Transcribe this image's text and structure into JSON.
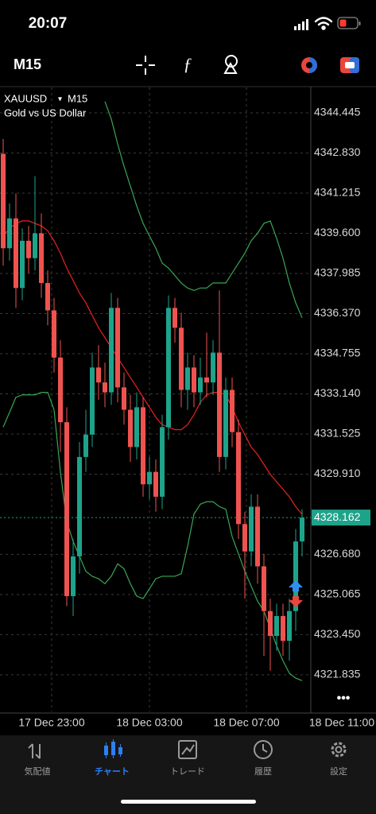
{
  "status": {
    "time": "20:07"
  },
  "toolbar": {
    "timeframe": "M15"
  },
  "chart_data": {
    "type": "candlestick",
    "symbol": "XAUUSD",
    "timeframe": "M15",
    "description": "Gold vs US Dollar",
    "up_color": "#1ea38b",
    "down_color": "#ef5350",
    "grid": true,
    "ylim": [
      4320.36,
      4345.47
    ],
    "yticks": [
      4344.445,
      {
        "value": 4342.83,
        "label": "4342.830"
      },
      4341.215,
      {
        "value": 4339.6,
        "label": "4339.600"
      },
      4337.985,
      {
        "value": 4336.37,
        "label": "4336.370"
      },
      4334.755,
      {
        "value": 4333.14,
        "label": "4333.140"
      },
      4331.525,
      {
        "value": 4329.91,
        "label": "4329.910"
      },
      {
        "value": 4326.68,
        "label": "4326.680"
      },
      4325.065,
      {
        "value": 4323.45,
        "label": "4323.450"
      },
      4321.835
    ],
    "time_labels": [
      "17 Dec 23:00",
      "18 Dec 03:00",
      "18 Dec 07:00",
      "18 Dec 11:00"
    ],
    "open": [
      4342.8,
      4339.0,
      4340.2,
      4337.4,
      4339.3,
      4338.6,
      4339.6,
      4337.6,
      4336.5,
      4334.6,
      4332.0,
      4325.0,
      4326.6,
      4330.6,
      4331.5,
      4334.2,
      4333.6,
      4333.2,
      4336.6,
      4333.4,
      4332.5,
      4331.0,
      4332.6,
      4329.5,
      4330.0,
      4329.0,
      4331.8,
      4336.6,
      4335.8,
      4333.3,
      4334.2,
      4333.2,
      4333.8,
      4333.6,
      4334.8,
      4330.6,
      4333.3,
      4331.6,
      4327.9,
      4326.8,
      4328.6,
      4326.2,
      4324.4,
      4323.4,
      4324.2,
      4323.2,
      4324.4,
      4327.2
    ],
    "high": [
      4343.4,
      4340.8,
      4341.2,
      4339.8,
      4339.9,
      4341.9,
      4340.4,
      4338.1,
      4337.0,
      4335.3,
      4332.6,
      4327.3,
      4331.2,
      4332.5,
      4334.8,
      4335.1,
      4334.4,
      4337.2,
      4337.0,
      4334.0,
      4333.1,
      4333.2,
      4333.0,
      4330.6,
      4330.5,
      4332.3,
      4337.1,
      4337.0,
      4336.4,
      4334.8,
      4334.7,
      4334.6,
      4335.6,
      4335.3,
      4337.3,
      4333.8,
      4333.8,
      4332.1,
      4328.4,
      4329.1,
      4329.1,
      4326.7,
      4324.9,
      4324.7,
      4324.7,
      4324.9,
      4327.7,
      4328.5
    ],
    "low": [
      4338.3,
      4338.5,
      4336.6,
      4336.9,
      4338.0,
      4338.1,
      4337.0,
      4335.9,
      4334.0,
      4330.8,
      4324.6,
      4324.2,
      4325.9,
      4330.0,
      4331.0,
      4332.9,
      4332.6,
      4332.7,
      4332.8,
      4331.9,
      4330.4,
      4330.5,
      4329.0,
      4328.9,
      4328.4,
      4328.5,
      4331.3,
      4335.2,
      4332.6,
      4332.5,
      4332.6,
      4332.7,
      4333.0,
      4333.1,
      4330.0,
      4330.1,
      4331.0,
      4327.3,
      4324.9,
      4326.2,
      4325.5,
      4322.6,
      4322.0,
      4322.8,
      4322.6,
      4322.4,
      4323.6,
      4326.6
    ],
    "close": [
      4339.0,
      4340.2,
      4337.4,
      4339.3,
      4338.6,
      4339.6,
      4337.6,
      4336.5,
      4334.6,
      4332.0,
      4325.0,
      4326.6,
      4330.6,
      4331.5,
      4334.2,
      4333.6,
      4333.2,
      4336.6,
      4333.4,
      4332.5,
      4331.0,
      4332.6,
      4329.5,
      4330.0,
      4329.0,
      4331.8,
      4336.6,
      4335.8,
      4333.3,
      4334.2,
      4333.2,
      4333.8,
      4333.6,
      4334.8,
      4330.6,
      4333.3,
      4331.6,
      4327.9,
      4326.8,
      4328.6,
      4326.2,
      4324.4,
      4323.4,
      4324.2,
      4323.2,
      4324.4,
      4327.2,
      4328.162
    ],
    "series": [
      {
        "color": "#e8231e",
        "values": [
          4339.5,
          4339.8,
          4340,
          4340.1,
          4340.1,
          4340,
          4339.9,
          4339.7,
          4339.3,
          4338.8,
          4338.2,
          4337.7,
          4337.2,
          4336.8,
          4336.3,
          4335.8,
          4335.4,
          4335,
          4334.6,
          4334.2,
          4333.8,
          4333.4,
          4333,
          4332.6,
          4332.2,
          4331.9,
          4331.8,
          4331.7,
          4331.7,
          4331.9,
          4332.3,
          4332.8,
          4333.1,
          4333.2,
          4333.2,
          4333.1,
          4332.6,
          4332,
          4331.5,
          4331,
          4330.7,
          4330.3,
          4329.9,
          4329.6,
          4329.3,
          4329,
          4328.6,
          4328.3
        ]
      },
      {
        "color": "#3aa655",
        "values": [
          null,
          null,
          null,
          null,
          null,
          null,
          null,
          null,
          null,
          null,
          null,
          null,
          null,
          null,
          null,
          null,
          4344.9,
          4344.2,
          4343.2,
          4342.3,
          4341.5,
          4340.7,
          4340,
          4339.5,
          4339,
          4338.4,
          4338.2,
          4337.9,
          4337.6,
          4337.4,
          4337.3,
          4337.4,
          4337.4,
          4337.6,
          4337.6,
          4337.6,
          4338,
          4338.4,
          4338.8,
          4339.3,
          4339.6,
          4340,
          4340.1,
          4339.4,
          4338.6,
          4337.6,
          4336.8,
          4336.2
        ]
      },
      {
        "color": "#3aa655",
        "values": [
          4331.8,
          4332.4,
          4333,
          4333.1,
          4333.1,
          4333.1,
          4333.2,
          4333.2,
          4332.5,
          4330,
          4328,
          4327.2,
          4326.6,
          4326,
          4325.8,
          4325.7,
          4325.5,
          4325.8,
          4326.3,
          4326.1,
          4325.5,
          4325,
          4324.9,
          4325.3,
          4325.7,
          4325.8,
          4325.8,
          4325.8,
          4325.9,
          4327,
          4328.3,
          4328.7,
          4328.8,
          4328.8,
          4328.6,
          4328.5,
          4327.4,
          4326.7,
          4326,
          4325.4,
          4324.8,
          4324.4,
          4323.7,
          4323,
          4322.4,
          4321.9,
          4321.7,
          4321.6
        ]
      }
    ]
  },
  "nav": [
    "気配値",
    "チャート",
    "トレード",
    "履歴",
    "設定"
  ]
}
